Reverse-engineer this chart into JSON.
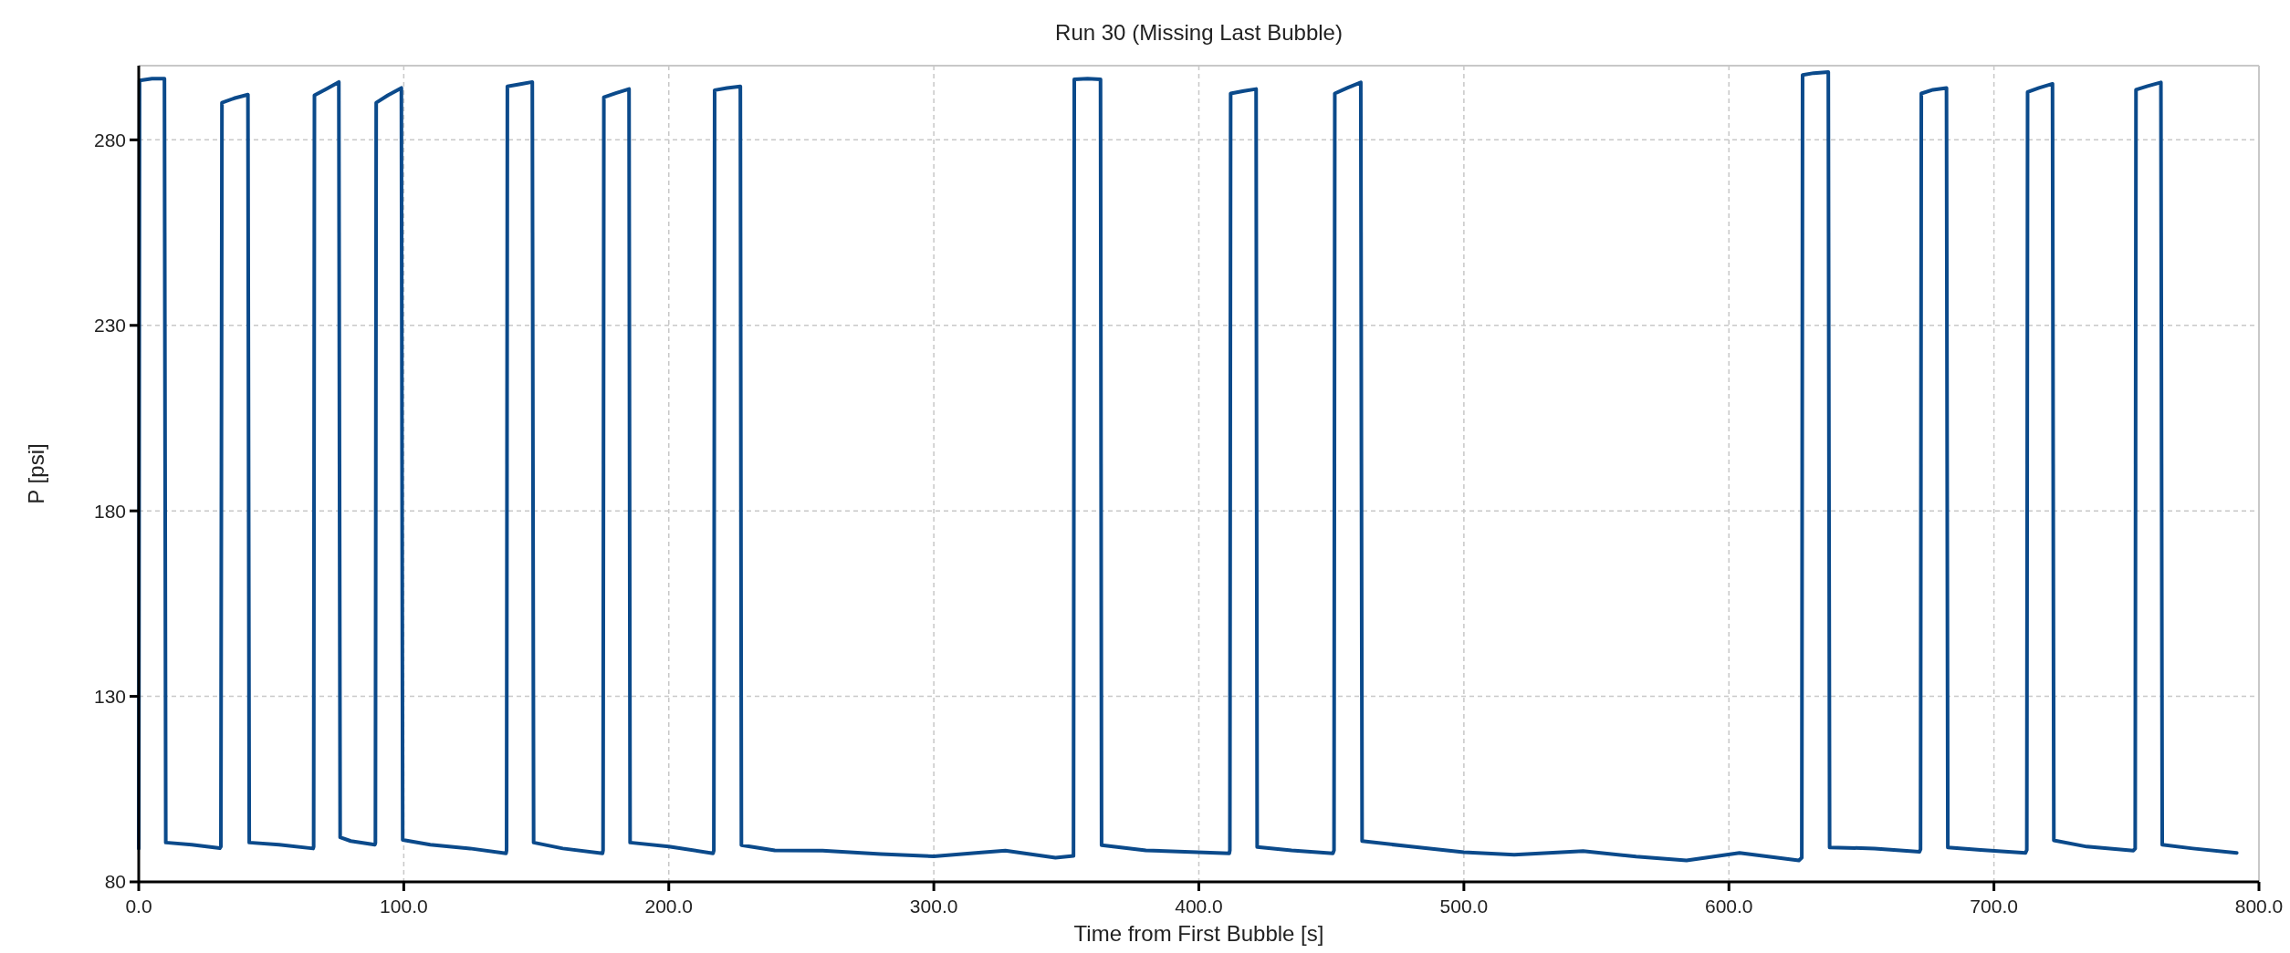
{
  "chart_data": {
    "type": "line",
    "title": "Run 30 (Missing Last Bubble)",
    "xlabel": "Time from First Bubble [s]",
    "ylabel": "P [psi]",
    "xlim": [
      0,
      800
    ],
    "ylim": [
      80,
      300
    ],
    "xticks": [
      {
        "value": 0,
        "label": "0.0"
      },
      {
        "value": 100,
        "label": "100.0"
      },
      {
        "value": 200,
        "label": "200.0"
      },
      {
        "value": 300,
        "label": "300.0"
      },
      {
        "value": 400,
        "label": "400.0"
      },
      {
        "value": 500,
        "label": "500.0"
      },
      {
        "value": 600,
        "label": "600.0"
      },
      {
        "value": 700,
        "label": "700.0"
      },
      {
        "value": 800,
        "label": "800.0"
      }
    ],
    "yticks": [
      80,
      130,
      180,
      230,
      280
    ],
    "grid": true,
    "line_style": "solid",
    "marker": "none",
    "series": [
      {
        "color": "#0b4a8b",
        "x": [
          0,
          0.3,
          5,
          9.7,
          10.2,
          20,
          30.6,
          31,
          31.4,
          36,
          41.2,
          41.7,
          53,
          65.8,
          66,
          66.3,
          71,
          75.5,
          76,
          80,
          89.1,
          89.3,
          89.6,
          94,
          99.1,
          99.6,
          110,
          125,
          138.6,
          138.8,
          139.1,
          144,
          148.5,
          149,
          160,
          175,
          175.2,
          175.5,
          180,
          185,
          185.4,
          200,
          216.7,
          217,
          217.3,
          222,
          227,
          227.4,
          240,
          258,
          280,
          300,
          318,
          327,
          345.9,
          352.7,
          353,
          358,
          362.9,
          363.3,
          380,
          411.5,
          411.7,
          412,
          417,
          421.6,
          422,
          435,
          450.6,
          451,
          451.3,
          456,
          461.1,
          461.6,
          480,
          500,
          519,
          545,
          565,
          584,
          604,
          626.4,
          627.5,
          627.8,
          632,
          637.5,
          638,
          655,
          671.9,
          672.3,
          672.6,
          677,
          682.1,
          682.6,
          695,
          711.9,
          712.4,
          712.7,
          717,
          722.1,
          722.6,
          735,
          752.6,
          753.3,
          753.6,
          758,
          763,
          763.5,
          775,
          791.6
        ],
        "values": [
          89,
          296,
          296.5,
          296.5,
          90.6,
          90,
          89.1,
          89.5,
          290,
          291.2,
          292.2,
          90.6,
          90,
          89,
          89.5,
          292,
          293.8,
          295.6,
          92,
          91,
          90,
          90.5,
          290,
          292,
          294,
          91.3,
          90,
          89,
          87.7,
          88.5,
          294.4,
          295,
          295.6,
          90.6,
          89,
          87.7,
          88.5,
          291.5,
          292.6,
          293.7,
          90.6,
          89.5,
          87.7,
          88.5,
          293.4,
          294,
          294.4,
          89.9,
          88.5,
          88.4,
          87.5,
          86.9,
          87.9,
          88.4,
          86.5,
          87,
          296.3,
          296.5,
          296.3,
          89.9,
          88.5,
          87.7,
          88.5,
          292.5,
          293.2,
          293.7,
          89.4,
          88.5,
          87.7,
          88.5,
          292.5,
          294,
          295.5,
          91,
          89.5,
          88,
          87.3,
          88.3,
          86.8,
          85.8,
          87.8,
          85.8,
          86.5,
          297.5,
          298,
          298.3,
          89.3,
          89,
          88.1,
          88.8,
          292.5,
          293.5,
          294,
          89.3,
          88.6,
          87.8,
          88.6,
          292.9,
          294,
          295.1,
          91.2,
          89.5,
          88.4,
          89,
          293.5,
          294.5,
          295.5,
          90,
          89,
          87.8
        ]
      }
    ]
  }
}
